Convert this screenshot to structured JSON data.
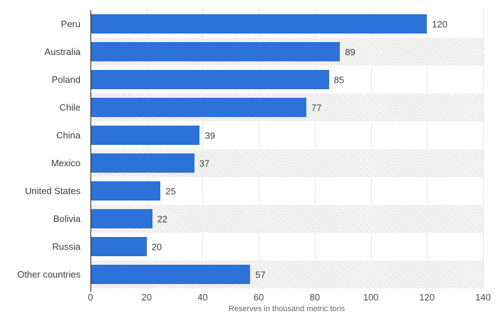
{
  "chart_data": {
    "type": "bar",
    "orientation": "horizontal",
    "title": "",
    "categories": [
      "Peru",
      "Australia",
      "Poland",
      "Chile",
      "China",
      "Mexico",
      "United States",
      "Bolivia",
      "Russia",
      "Other countries"
    ],
    "values": [
      120,
      89,
      85,
      77,
      39,
      37,
      25,
      22,
      20,
      57
    ],
    "xlabel": "Reserves in thousand metric tons",
    "ylabel": "",
    "xlim": [
      0,
      140
    ],
    "xticks": [
      0,
      20,
      40,
      60,
      80,
      100,
      120,
      140
    ],
    "grid": "vertical dotted gridlines at every x tick",
    "legend": "none",
    "row_bands": "alternating plain white and light hatched gray bands, 2nd/4th/6th/8th/10th rows shaded",
    "value_labels": "right of each bar end"
  },
  "colors": {
    "bar": "#2c72d9",
    "axis_line": "#1f1f1f",
    "gridline": "#cfcfcf",
    "category_text": "#3d3d3d",
    "value_text": "#3f3f3f",
    "tick_text": "#4c4c4c",
    "axis_title_text": "#666666",
    "background": "#ffffff"
  }
}
